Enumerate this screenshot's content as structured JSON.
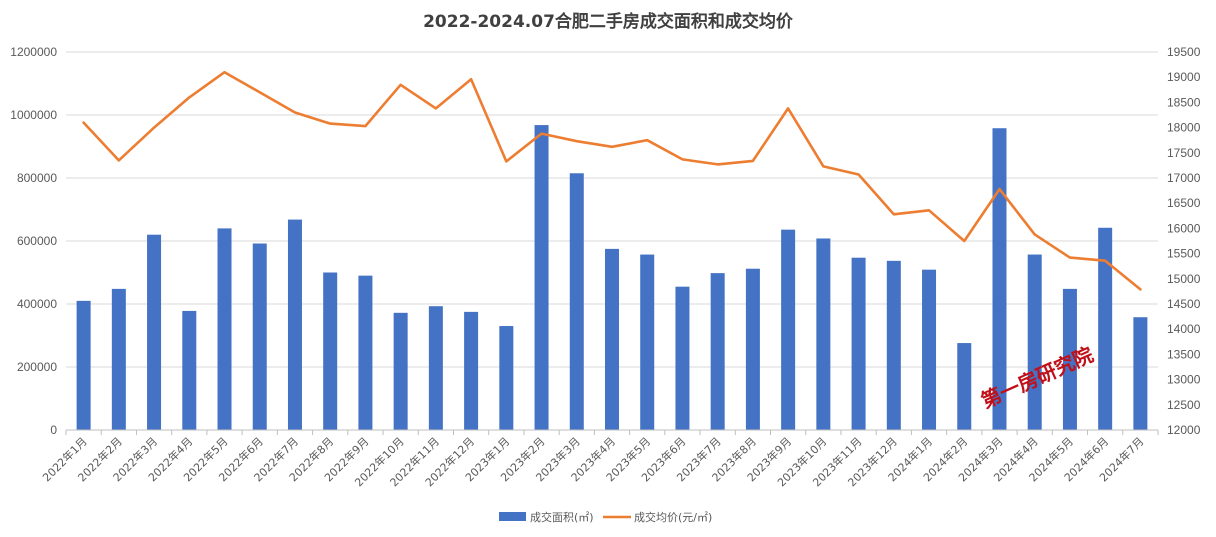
{
  "chart_data": {
    "type": "bar",
    "title": "2022-2024.07合肥二手房成交面积和成交均价",
    "categories": [
      "2022年1月",
      "2022年2月",
      "2022年3月",
      "2022年4月",
      "2022年5月",
      "2022年6月",
      "2022年7月",
      "2022年8月",
      "2022年9月",
      "2022年10月",
      "2022年11月",
      "2022年12月",
      "2023年1月",
      "2023年2月",
      "2023年3月",
      "2023年4月",
      "2023年5月",
      "2023年6月",
      "2023年7月",
      "2023年8月",
      "2023年9月",
      "2023年10月",
      "2023年11月",
      "2023年12月",
      "2024年1月",
      "2024年2月",
      "2024年3月",
      "2024年4月",
      "2024年5月",
      "2024年6月",
      "2024年7月"
    ],
    "series": [
      {
        "name": "成交面积(㎡)",
        "type": "bar",
        "axis": "left",
        "color": "#4472c4",
        "values": [
          410000,
          448000,
          620000,
          378000,
          640000,
          592000,
          668000,
          500000,
          490000,
          372000,
          393000,
          375000,
          330000,
          968000,
          815000,
          575000,
          557000,
          455000,
          498000,
          512000,
          636000,
          608000,
          547000,
          537000,
          509000,
          276000,
          958000,
          557000,
          448000,
          642000,
          358000
        ]
      },
      {
        "name": "成交均价(元/㎡)",
        "type": "line",
        "axis": "right",
        "color": "#ed7d31",
        "values": [
          18100,
          17350,
          18000,
          18600,
          19100,
          18700,
          18300,
          18080,
          18030,
          18850,
          18380,
          18960,
          17330,
          17880,
          17730,
          17620,
          17750,
          17370,
          17270,
          17340,
          18380,
          17230,
          17070,
          16280,
          16360,
          15750,
          16780,
          15880,
          15420,
          15360,
          14790
        ]
      }
    ],
    "y_left": {
      "min": 0,
      "max": 1200000,
      "ticks": [
        "0",
        "200000",
        "400000",
        "600000",
        "800000",
        "1000000",
        "1200000"
      ]
    },
    "y_right": {
      "min": 12000,
      "max": 19500,
      "ticks": [
        "12000",
        "12500",
        "13000",
        "13500",
        "14000",
        "14500",
        "15000",
        "15500",
        "16000",
        "16500",
        "17000",
        "17500",
        "18000",
        "18500",
        "19000",
        "19500"
      ]
    },
    "grid": true,
    "legend_position": "bottom",
    "watermark": "第一房研究院"
  }
}
